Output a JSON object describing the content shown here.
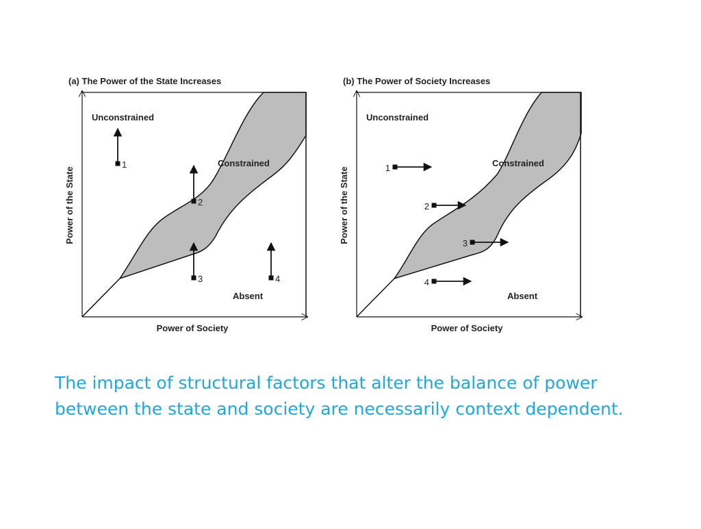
{
  "panels": [
    {
      "title": "(a) The Power of the State Increases",
      "y_axis": "Power of the State",
      "x_axis": "Power of Society",
      "regions": {
        "unconstrained": "Unconstrained",
        "constrained": "Constrained",
        "absent": "Absent"
      },
      "points": [
        "1",
        "2",
        "3",
        "4"
      ]
    },
    {
      "title": "(b) The Power of Society Increases",
      "y_axis": "Power of the State",
      "x_axis": "Power of Society",
      "regions": {
        "unconstrained": "Unconstrained",
        "constrained": "Constrained",
        "absent": "Absent"
      },
      "points": [
        "1",
        "2",
        "3",
        "4"
      ]
    }
  ],
  "caption": {
    "lines": [
      "The impact of structural factors that alter the balance of power",
      "between the state and society are necessarily context dependent."
    ]
  }
}
